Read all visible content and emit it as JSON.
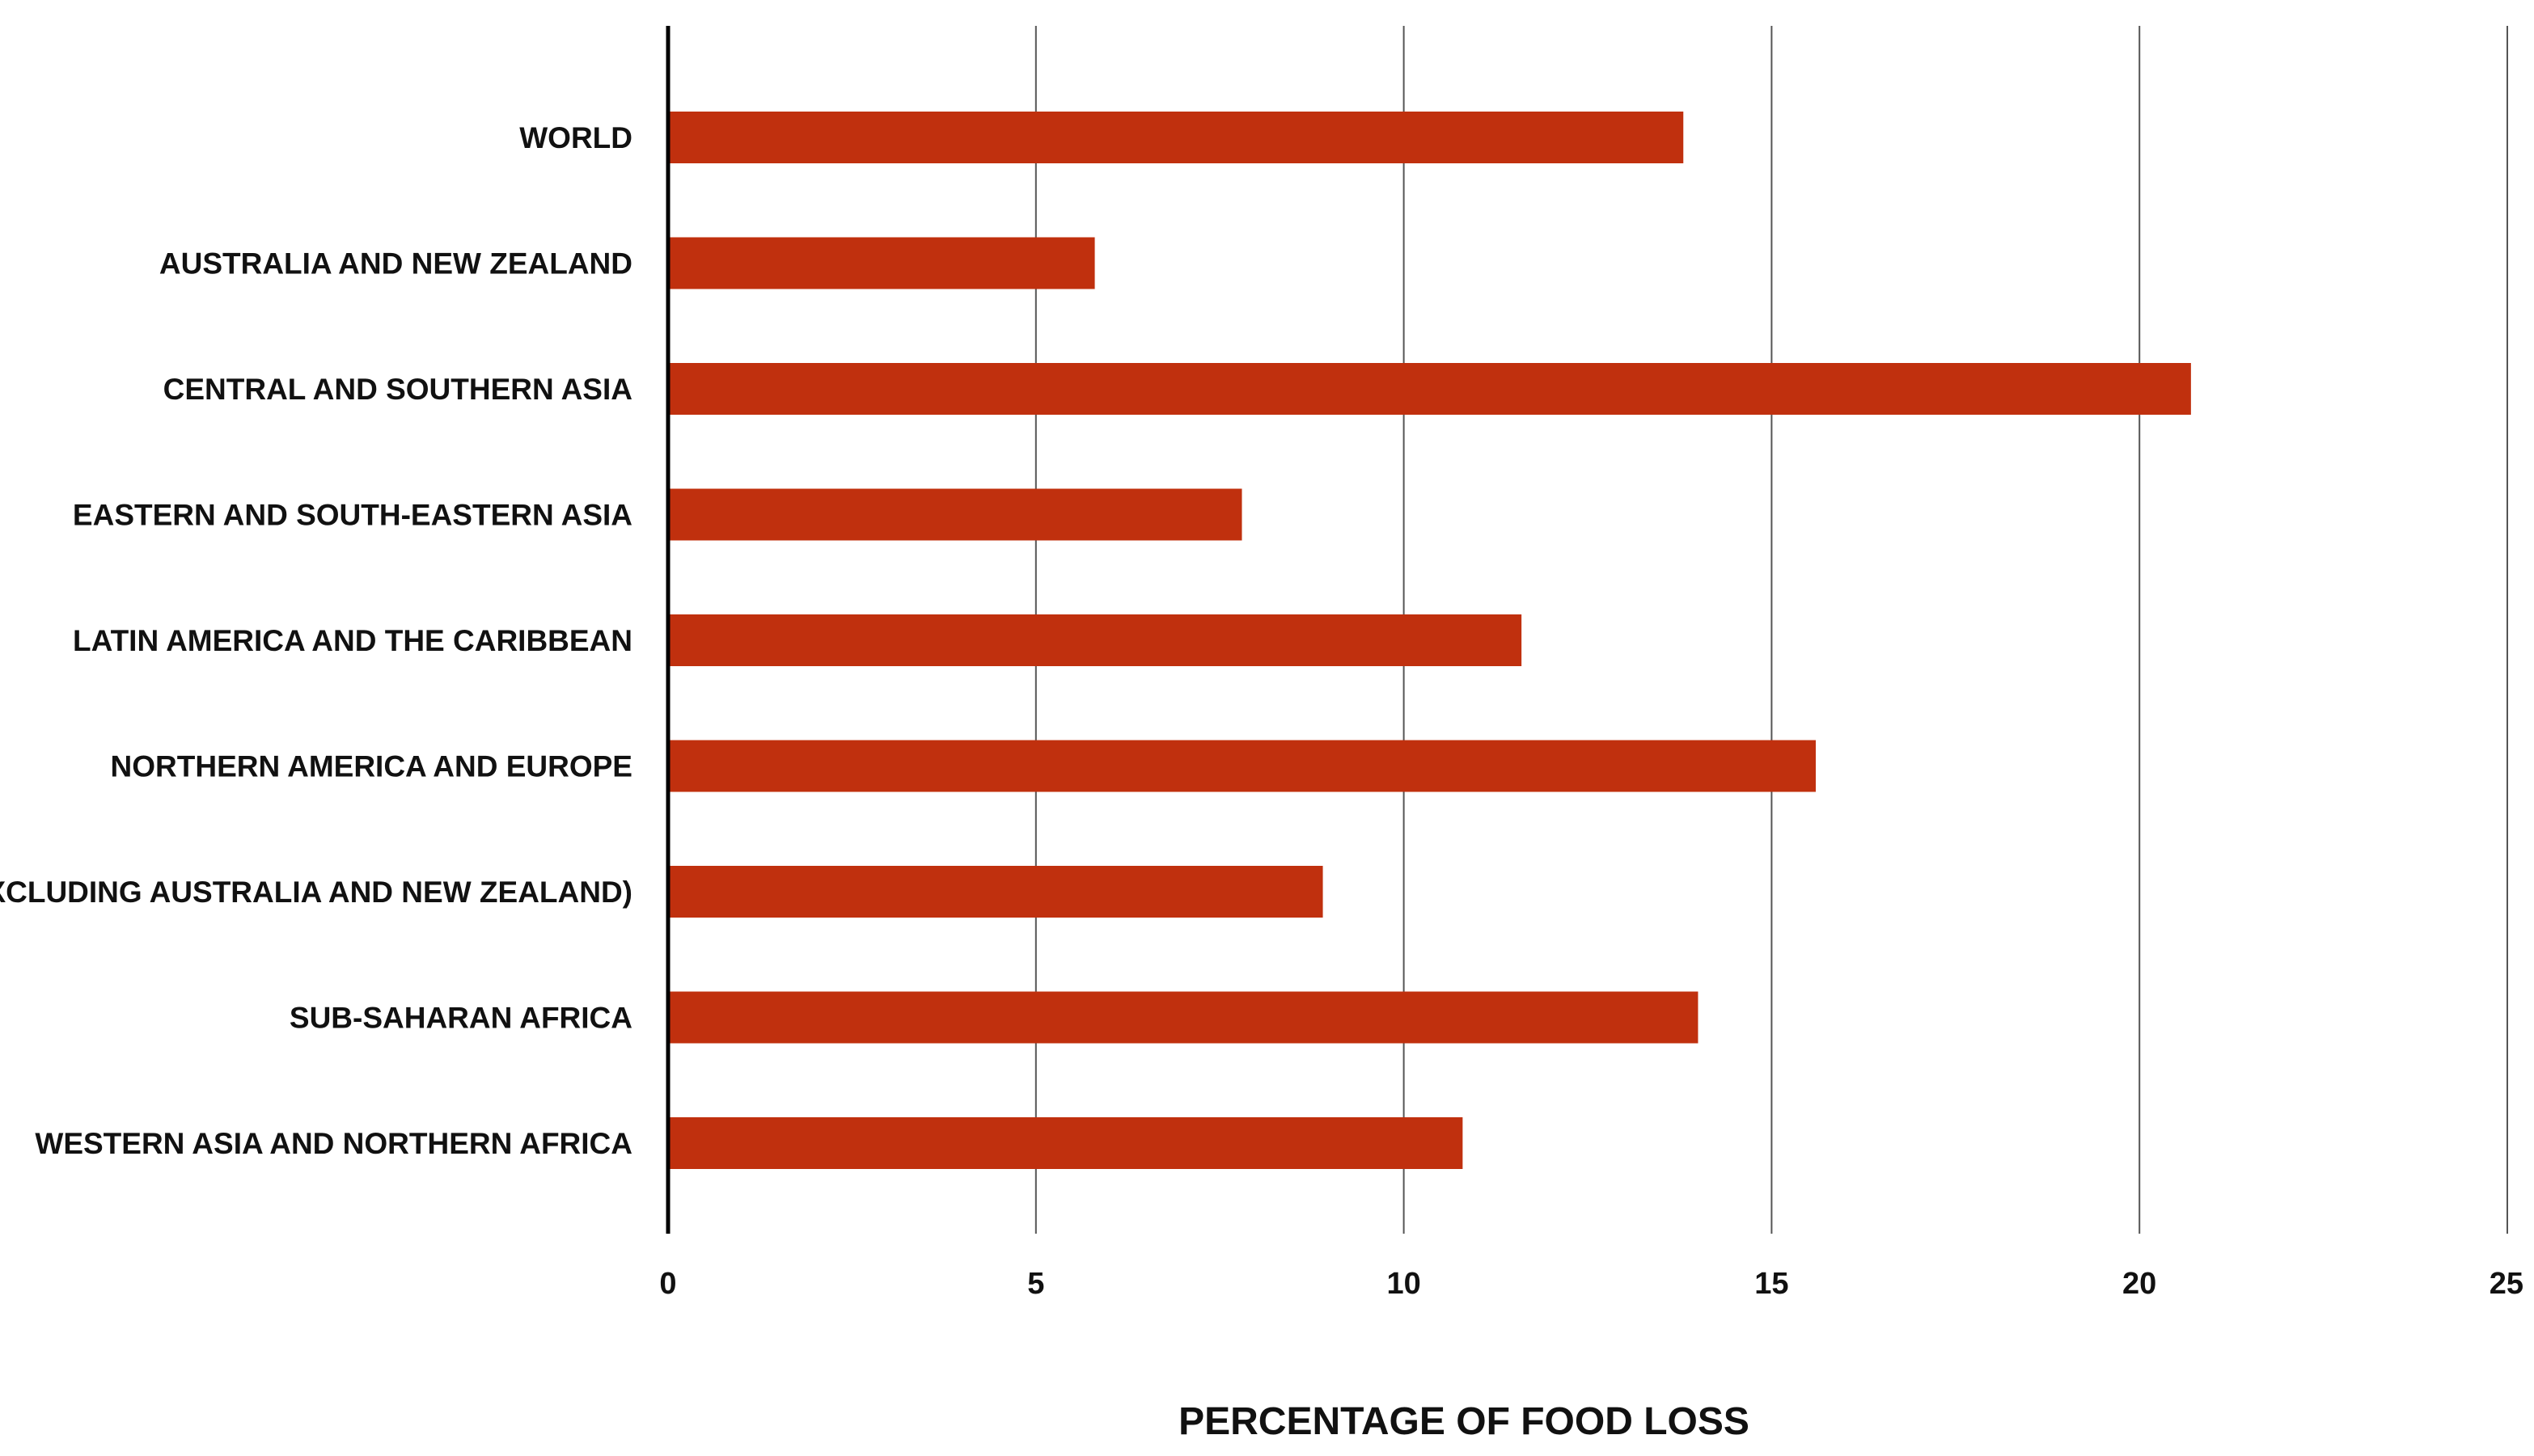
{
  "chart_data": {
    "type": "bar",
    "orientation": "horizontal",
    "title": "",
    "xlabel": "PERCENTAGE OF FOOD LOSS",
    "ylabel": "",
    "categories": [
      "WORLD",
      "AUSTRALIA AND NEW ZEALAND",
      "CENTRAL AND SOUTHERN ASIA",
      "EASTERN AND SOUTH-EASTERN ASIA",
      "LATIN AMERICA AND THE CARIBBEAN",
      "NORTHERN AMERICA AND EUROPE",
      "OCEANIA (EXCLUDING AUSTRALIA AND NEW ZEALAND)",
      "SUB-SAHARAN AFRICA",
      "WESTERN ASIA AND NORTHERN AFRICA"
    ],
    "values": [
      13.8,
      5.8,
      20.7,
      7.8,
      11.6,
      15.6,
      8.9,
      14.0,
      10.8
    ],
    "xlim": [
      0,
      25
    ],
    "xticks": [
      0,
      5,
      10,
      15,
      20,
      25
    ],
    "grid": true,
    "legend": "none",
    "bar_color": "#c0300e",
    "grid_color": "#555555",
    "axis_color": "#000000"
  }
}
